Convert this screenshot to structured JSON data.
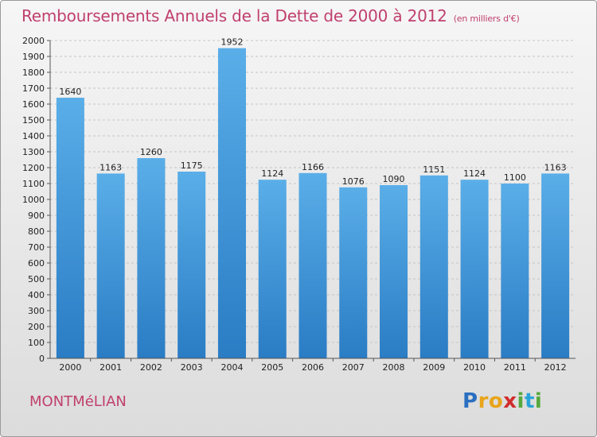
{
  "title": "Remboursements Annuels de la Dette de 2000 à 2012",
  "title_unit": "(en milliers d'€)",
  "location": "MONTMéLIAN",
  "logo": {
    "letters": [
      "P",
      "r",
      "o",
      "x",
      "i",
      "t",
      "i"
    ],
    "colors": [
      "#2a6fc0",
      "#e8a41a",
      "#e8a41a",
      "#d12d2d",
      "#56a83c",
      "#2aa4d8",
      "#56a83c"
    ]
  },
  "colors": {
    "title": "#c0406e",
    "bar_top": "#5aaee8",
    "bar_bottom": "#2a7cc4"
  },
  "chart_data": {
    "type": "bar",
    "categories": [
      "2000",
      "2001",
      "2002",
      "2003",
      "2004",
      "2005",
      "2006",
      "2007",
      "2008",
      "2009",
      "2010",
      "2011",
      "2012"
    ],
    "values": [
      1640,
      1163,
      1260,
      1175,
      1952,
      1124,
      1166,
      1076,
      1090,
      1151,
      1124,
      1100,
      1163
    ],
    "ylim": [
      0,
      2000
    ],
    "ytick_step": 100,
    "grid": true,
    "xlabel": "",
    "ylabel": ""
  }
}
